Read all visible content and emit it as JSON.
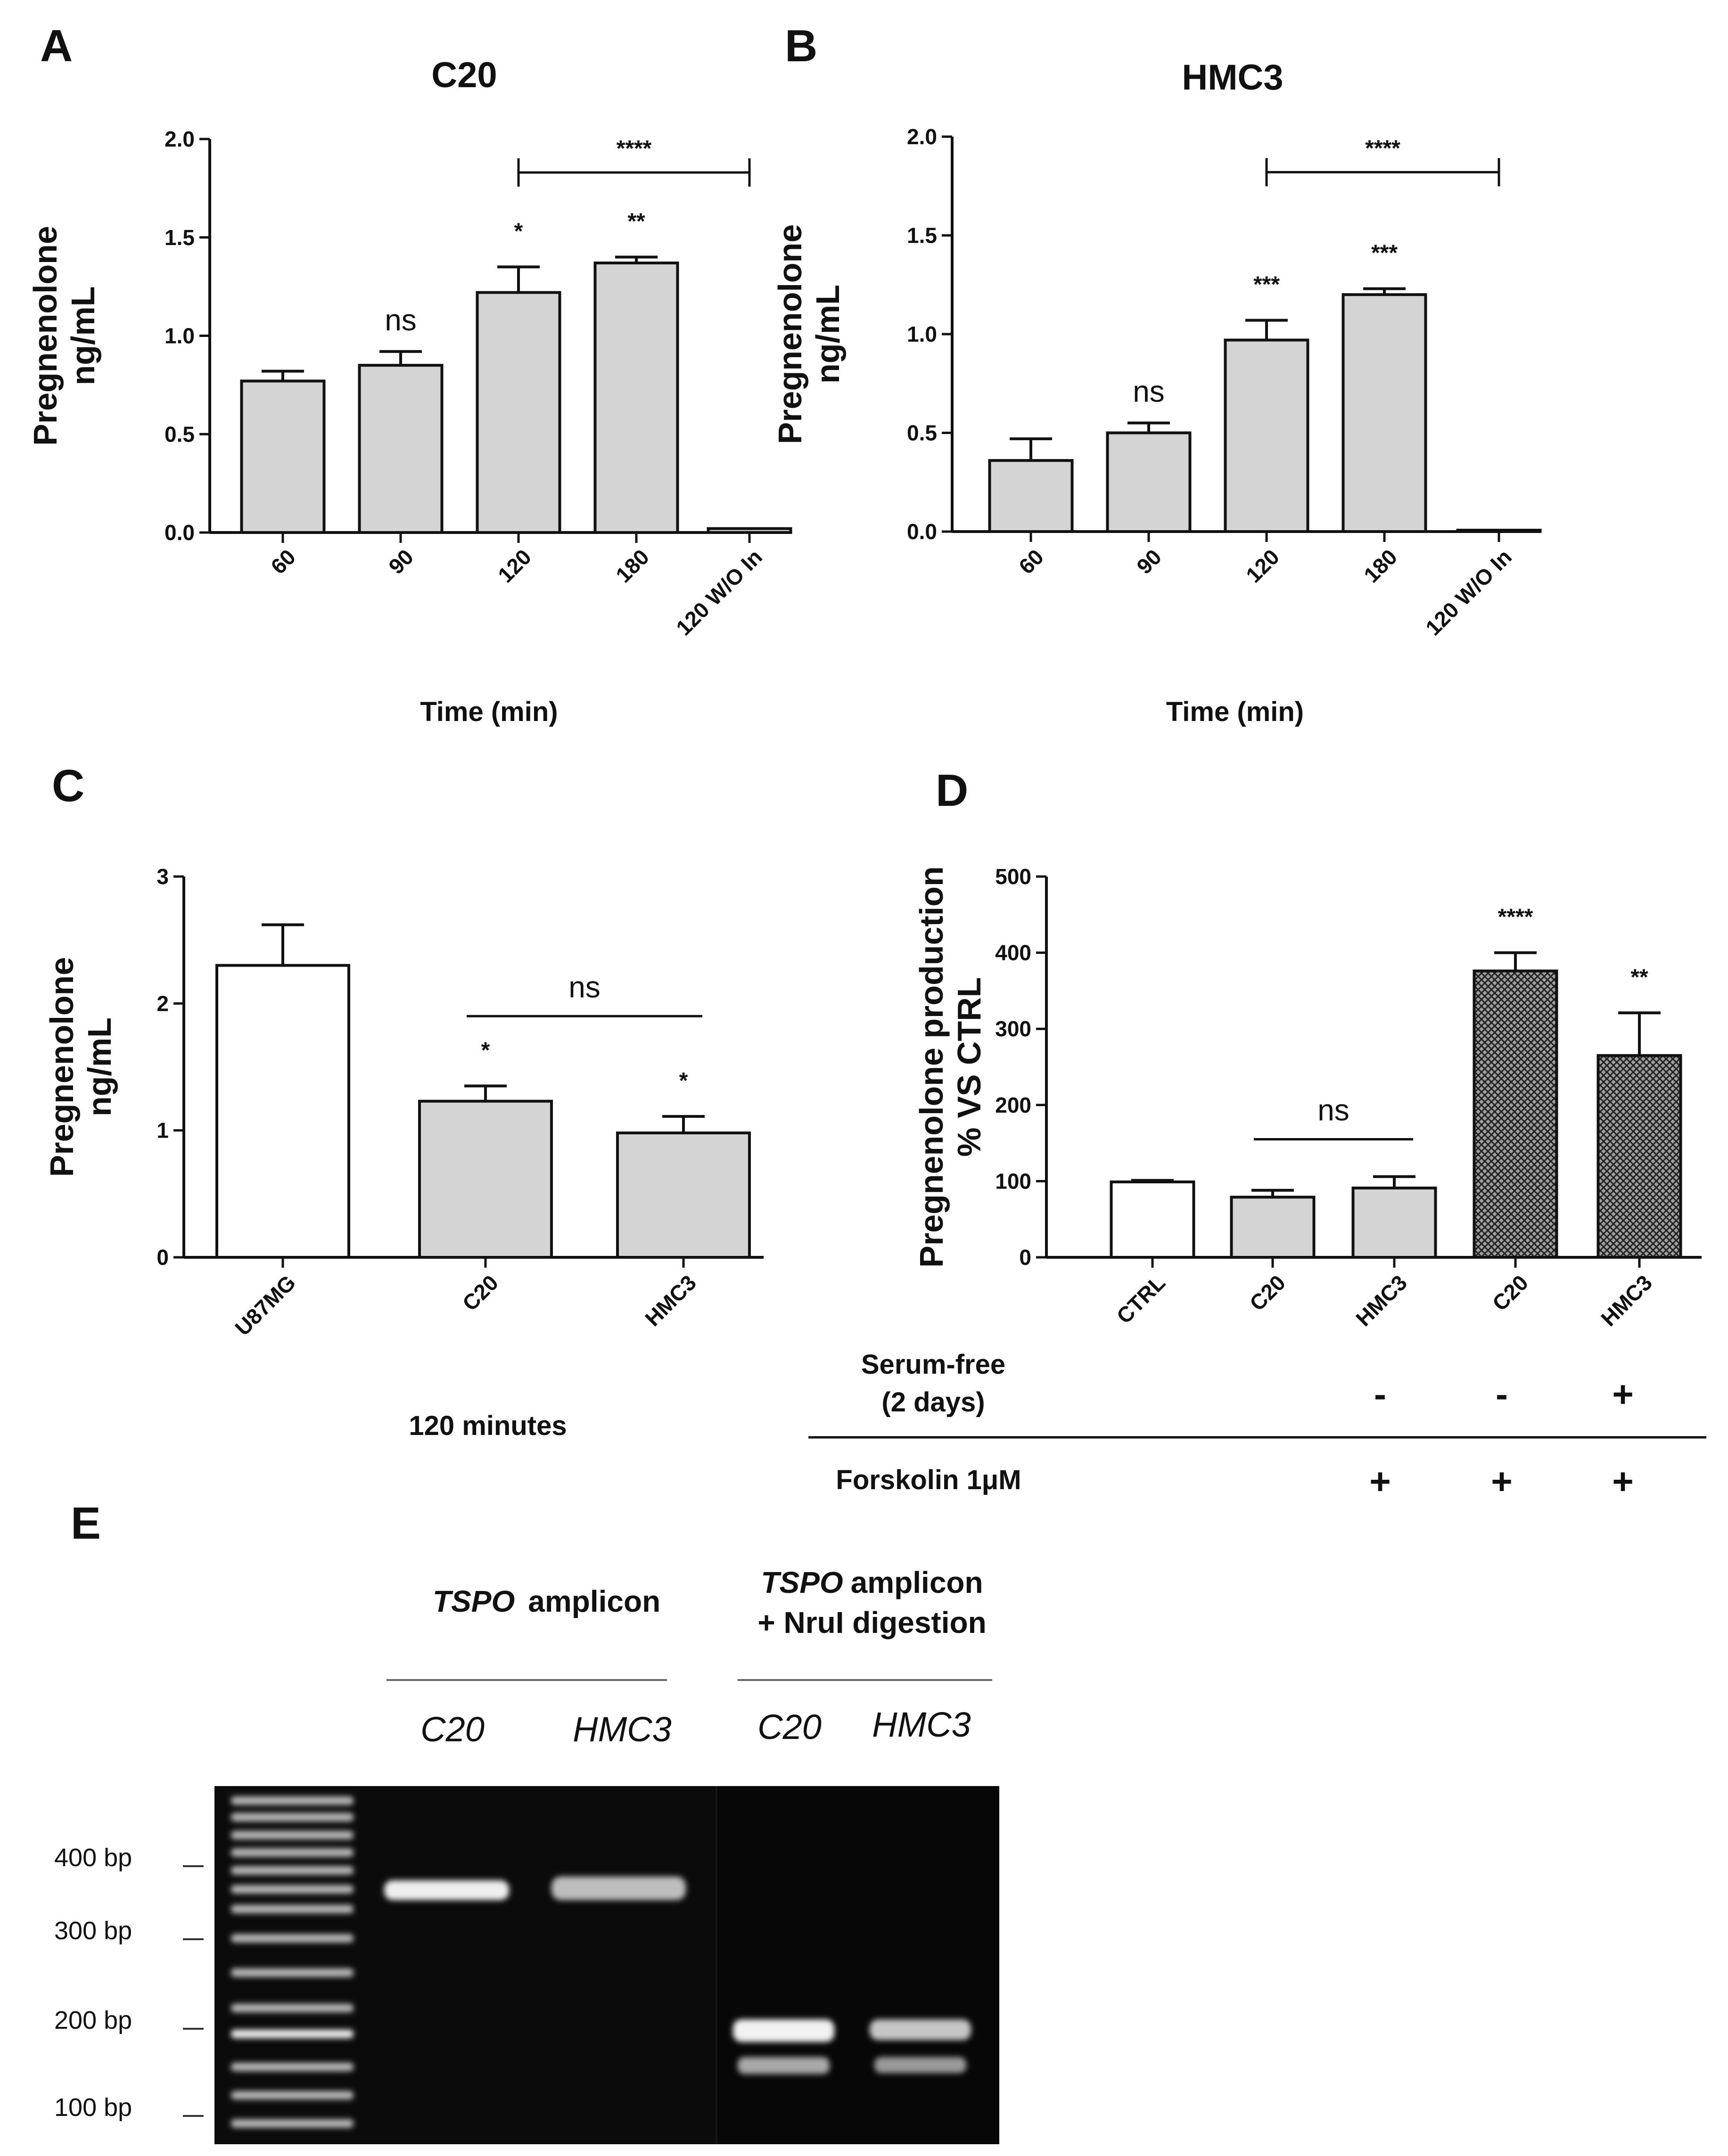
{
  "colors": {
    "bar_fill": "#d4d4d4",
    "bar_white": "#ffffff",
    "stroke": "#111111",
    "gel_background": "#0b0b0b",
    "gel_band": "#e6e6e6"
  },
  "chart_data": [
    {
      "panel": "A",
      "type": "bar",
      "title": "C20",
      "ylabel": [
        "Pregnenolone",
        "ng/mL"
      ],
      "xlabel": "Time (min)",
      "ylim": [
        0,
        2.0
      ],
      "yticks": [
        "0.0",
        "0.5",
        "1.0",
        "1.5",
        "2.0"
      ],
      "categories": [
        "60",
        "90",
        "120",
        "180",
        "120 W/O In"
      ],
      "values": [
        0.77,
        0.85,
        1.22,
        1.37,
        0.02
      ],
      "errors": [
        0.05,
        0.07,
        0.13,
        0.03,
        0.0
      ],
      "bar_annotations": [
        "",
        "ns",
        "*",
        "**",
        ""
      ],
      "comparison": {
        "from": 2,
        "to": 4,
        "label": "****",
        "level": 1.83
      }
    },
    {
      "panel": "B",
      "type": "bar",
      "title": "HMC3",
      "ylabel": [
        "Pregnenolone",
        "ng/mL"
      ],
      "xlabel": "Time (min)",
      "ylim": [
        0,
        2.0
      ],
      "yticks": [
        "0.0",
        "0.5",
        "1.0",
        "1.5",
        "2.0"
      ],
      "categories": [
        "60",
        "90",
        "120",
        "180",
        "120 W/O In"
      ],
      "values": [
        0.36,
        0.5,
        0.97,
        1.2,
        0.005
      ],
      "errors": [
        0.11,
        0.05,
        0.1,
        0.03,
        0.0
      ],
      "bar_annotations": [
        "",
        "ns",
        "***",
        "***",
        ""
      ],
      "comparison": {
        "from": 2,
        "to": 4,
        "label": "****",
        "level": 1.82
      }
    },
    {
      "panel": "C",
      "type": "bar",
      "title": "",
      "ylabel": [
        "Pregnenolone",
        "ng/mL"
      ],
      "xlabel": "120 minutes",
      "ylim": [
        0,
        3
      ],
      "yticks": [
        "0",
        "1",
        "2",
        "3"
      ],
      "categories": [
        "U87MG",
        "C20",
        "HMC3"
      ],
      "values": [
        2.3,
        1.23,
        0.98
      ],
      "errors": [
        0.32,
        0.12,
        0.13
      ],
      "bar_annotations": [
        "",
        "*",
        "*"
      ],
      "comparison": {
        "from": 1,
        "to": 2,
        "label": "ns",
        "level": 1.9
      }
    },
    {
      "panel": "D",
      "type": "bar",
      "title": "",
      "ylabel": [
        "Pregnenolone production",
        "% VS CTRL"
      ],
      "xlabel": "",
      "ylim": [
        0,
        500
      ],
      "yticks": [
        "0",
        "100",
        "200",
        "300",
        "400",
        "500"
      ],
      "categories": [
        "CTRL",
        "C20",
        "HMC3",
        "C20",
        "HMC3"
      ],
      "values": [
        99,
        79,
        91,
        376,
        265
      ],
      "errors": [
        2,
        9,
        15,
        24,
        56
      ],
      "bar_annotations": [
        "",
        "",
        "",
        "****",
        "**"
      ],
      "comparison": {
        "from": 1,
        "to": 2,
        "label": "ns",
        "level": 155
      },
      "conditions": [
        {
          "label": [
            "Serum-free",
            "(2 days)"
          ],
          "signs": [
            "",
            "-",
            "-",
            "+",
            "+"
          ]
        },
        {
          "label": [
            "Forskolin 1μM"
          ],
          "signs": [
            "",
            "+",
            "+",
            "+",
            "+"
          ]
        }
      ]
    }
  ],
  "gel": {
    "panel": "E",
    "group1_title": [
      "TSPO",
      "amplicon"
    ],
    "group2_title_line1": [
      "TSPO",
      "amplicon"
    ],
    "group2_title_line2": "+ NruI digestion",
    "lanes": [
      "C20",
      "HMC3",
      "C20",
      "HMC3"
    ],
    "size_markers": [
      "400 bp",
      "300 bp",
      "200 bp",
      "100 bp"
    ]
  }
}
